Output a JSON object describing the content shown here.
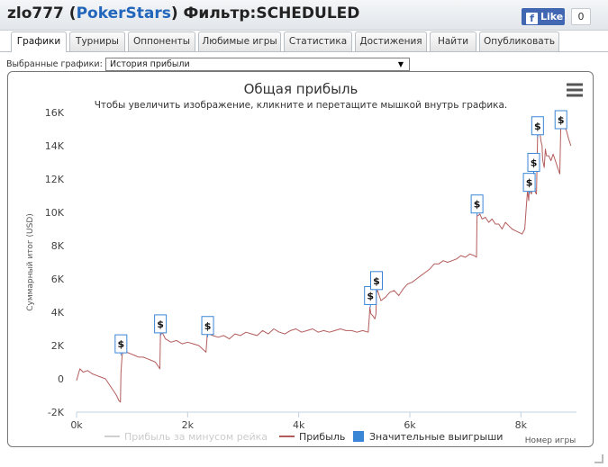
{
  "header": {
    "user": "zlo777",
    "paren_open": " (",
    "site": "PokerStars",
    "paren_close": ")",
    "filter_label": " Фильтр:",
    "filter_value": "SCHEDULED"
  },
  "facebook": {
    "like_label": "Like",
    "icon_glyph": "f",
    "count": "0"
  },
  "tabs": [
    {
      "label": "Графики",
      "active": true
    },
    {
      "label": "Турниры",
      "active": false
    },
    {
      "label": "Оппоненты",
      "active": false
    },
    {
      "label": "Любимые игры",
      "active": false
    },
    {
      "label": "Статистика",
      "active": false
    },
    {
      "label": "Достижения",
      "active": false
    },
    {
      "label": "Найти",
      "active": false
    },
    {
      "label": "Опубликовать",
      "active": false
    }
  ],
  "selector": {
    "label": "Выбранные графики:",
    "value": "История прибыли",
    "arrow": "▼"
  },
  "colors": {
    "profit_line": "#b45c5c",
    "rake_line": "#d0d0d0",
    "big_win_marker": "#3a86d6",
    "link": "#2266bb"
  },
  "chart_data": {
    "type": "line",
    "title": "Общая прибыль",
    "subtitle": "Чтобы увеличить изображение, кликните и перетащите мышкой внутрь графика.",
    "xlabel": "Номер игры",
    "ylabel": "Суммарный итог (USD)",
    "xlim": [
      0,
      9000
    ],
    "ylim": [
      -2000,
      16000
    ],
    "x_ticks": [
      0,
      2000,
      4000,
      6000,
      8000
    ],
    "x_tick_labels": [
      "0k",
      "2k",
      "4k",
      "6k",
      "8k"
    ],
    "y_ticks": [
      -2000,
      0,
      2000,
      4000,
      6000,
      8000,
      10000,
      12000,
      14000,
      16000
    ],
    "y_tick_labels": [
      "-2K",
      "0",
      "2K",
      "4K",
      "6K",
      "8K",
      "10K",
      "12K",
      "14K",
      "16K"
    ],
    "grid": false,
    "legend_position": "bottom",
    "legend": [
      "Прибыль за минусом рейка",
      "Прибыль",
      "Значительные выигрыши"
    ],
    "flag_label": "$",
    "series": [
      {
        "name": "Прибыль",
        "x": [
          0,
          60,
          120,
          200,
          280,
          360,
          440,
          520,
          600,
          660,
          720,
          760,
          790,
          800,
          820,
          850,
          900,
          980,
          1050,
          1120,
          1200,
          1280,
          1350,
          1420,
          1480,
          1500,
          1510,
          1540,
          1600,
          1700,
          1800,
          1900,
          2000,
          2100,
          2200,
          2300,
          2330,
          2350,
          2360,
          2380,
          2450,
          2550,
          2650,
          2750,
          2850,
          2950,
          3050,
          3150,
          3250,
          3350,
          3450,
          3550,
          3650,
          3750,
          3850,
          3950,
          4050,
          4150,
          4250,
          4350,
          4450,
          4550,
          4650,
          4750,
          4850,
          4950,
          5050,
          5150,
          5250,
          5270,
          5280,
          5300,
          5330,
          5370,
          5390,
          5400,
          5420,
          5480,
          5560,
          5640,
          5720,
          5800,
          5880,
          5960,
          6040,
          6120,
          6200,
          6280,
          6360,
          6440,
          6520,
          6600,
          6680,
          6760,
          6840,
          6920,
          7000,
          7080,
          7160,
          7200,
          7210,
          7230,
          7260,
          7300,
          7360,
          7420,
          7480,
          7540,
          7600,
          7660,
          7720,
          7780,
          7840,
          7900,
          7960,
          8020,
          8070,
          8100,
          8120,
          8140,
          8150,
          8160,
          8190,
          8220,
          8240,
          8260,
          8280,
          8290,
          8300,
          8330,
          8360,
          8380,
          8390,
          8400,
          8420,
          8440,
          8460,
          8500,
          8540,
          8580,
          8620,
          8660,
          8700,
          8720,
          8730,
          8760,
          8790,
          8820,
          8860,
          8900
        ],
        "values": [
          -100,
          600,
          400,
          500,
          300,
          200,
          100,
          0,
          -400,
          -700,
          -1000,
          -1300,
          -1400,
          400,
          1400,
          1800,
          1600,
          1500,
          1400,
          1300,
          1300,
          1200,
          1100,
          1000,
          700,
          600,
          2600,
          2800,
          2400,
          2200,
          2300,
          2100,
          2200,
          2100,
          2000,
          1700,
          1600,
          2500,
          2800,
          2700,
          2600,
          2500,
          2600,
          2400,
          2700,
          2600,
          2800,
          2700,
          2600,
          2900,
          2700,
          3000,
          2800,
          2700,
          2900,
          3000,
          2800,
          2900,
          3000,
          2800,
          2900,
          2800,
          2900,
          3000,
          2900,
          2900,
          2800,
          2900,
          2800,
          3700,
          4300,
          3900,
          3800,
          3600,
          3900,
          5200,
          5300,
          4700,
          4900,
          5200,
          5300,
          5000,
          5400,
          5700,
          5800,
          6000,
          6200,
          6400,
          6600,
          6900,
          6900,
          7100,
          7000,
          7100,
          7200,
          7400,
          7300,
          7500,
          7400,
          7300,
          9800,
          9800,
          9900,
          9600,
          9700,
          9400,
          9600,
          9300,
          9300,
          9000,
          9400,
          9200,
          9000,
          8900,
          8800,
          8700,
          9000,
          10500,
          11300,
          10700,
          11600,
          11300,
          11100,
          11900,
          12300,
          11200,
          11100,
          12800,
          14500,
          15100,
          14300,
          14000,
          13200,
          13000,
          12700,
          13800,
          13400,
          13400,
          13100,
          13500,
          13100,
          12700,
          12300,
          15500,
          15800,
          15700,
          15100,
          14900,
          14400,
          14000
        ]
      }
    ],
    "big_wins": [
      {
        "x": 800,
        "y": 1400
      },
      {
        "x": 1510,
        "y": 2600
      },
      {
        "x": 2360,
        "y": 2500
      },
      {
        "x": 5290,
        "y": 4300
      },
      {
        "x": 5400,
        "y": 5200
      },
      {
        "x": 7210,
        "y": 9800
      },
      {
        "x": 8150,
        "y": 11100
      },
      {
        "x": 8230,
        "y": 12300
      },
      {
        "x": 8300,
        "y": 14500
      },
      {
        "x": 8720,
        "y": 15500
      }
    ]
  }
}
